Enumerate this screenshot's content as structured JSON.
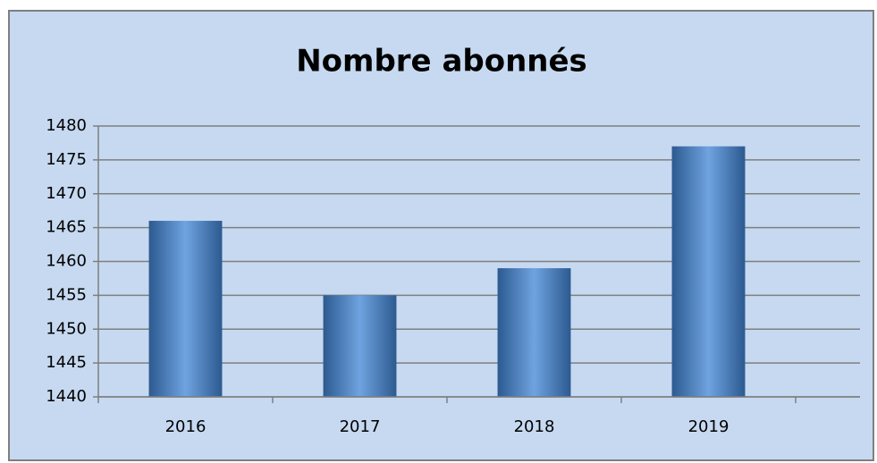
{
  "chart_data": {
    "type": "bar",
    "title": "Nombre abonnés",
    "categories": [
      "2016",
      "2017",
      "2018",
      "2019"
    ],
    "values": [
      1466,
      1455,
      1459,
      1477
    ],
    "color": "#4f81bd",
    "ylim": [
      1440,
      1480
    ],
    "yticks": [
      1440,
      1445,
      1450,
      1455,
      1460,
      1465,
      1470,
      1475,
      1480
    ],
    "grid": true
  }
}
